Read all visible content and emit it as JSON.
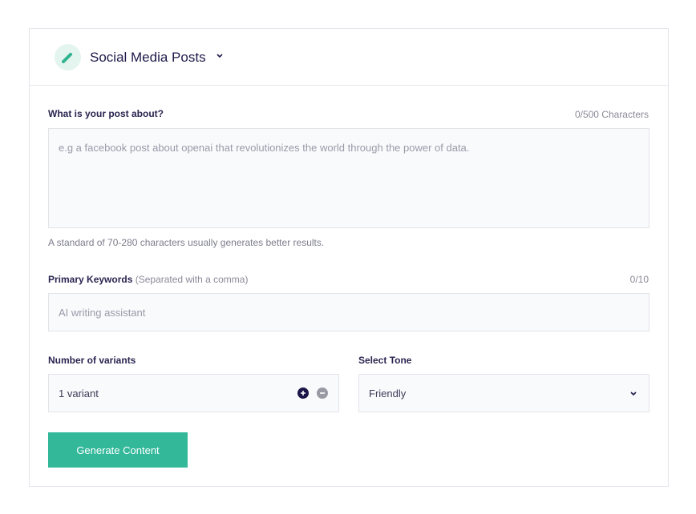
{
  "header": {
    "title": "Social Media Posts",
    "icon": "pencil-icon"
  },
  "post": {
    "label": "What is your post about?",
    "count": "0/500 Characters",
    "placeholder": "e.g a facebook post about openai that revolutionizes the world through the power of data.",
    "help": "A standard of 70-280 characters usually generates better results."
  },
  "keywords": {
    "label": "Primary Keywords",
    "hint": "(Separated with a comma)",
    "count": "0/10",
    "placeholder": "AI writing assistant"
  },
  "variants": {
    "label": "Number of variants",
    "value": "1 variant"
  },
  "tone": {
    "label": "Select Tone",
    "value": "Friendly"
  },
  "generate_label": "Generate Content",
  "colors": {
    "accent": "#33b89a",
    "text": "#1f1a4a"
  }
}
